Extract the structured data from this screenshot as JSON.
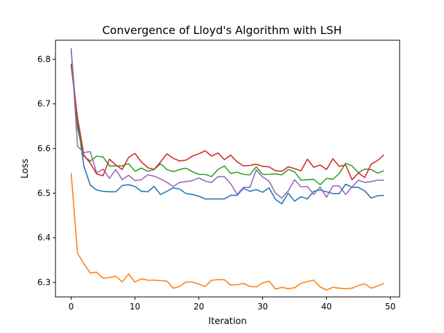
{
  "chart_data": {
    "type": "line",
    "title": "Convergence of Lloyd's Algorithm with LSH",
    "xlabel": "Iteration",
    "ylabel": "Loss",
    "xlim": [
      -2.45,
      51.45
    ],
    "ylim": [
      6.2675,
      6.8425
    ],
    "xticks": [
      0,
      10,
      20,
      30,
      40,
      50
    ],
    "yticks": [
      6.3,
      6.4,
      6.5,
      6.6,
      6.7,
      6.8
    ],
    "grid": false,
    "legend": "none",
    "x": [
      0,
      1,
      2,
      3,
      4,
      5,
      6,
      7,
      8,
      9,
      10,
      11,
      12,
      13,
      14,
      15,
      16,
      17,
      18,
      19,
      20,
      21,
      22,
      23,
      24,
      25,
      26,
      27,
      28,
      29,
      30,
      31,
      32,
      33,
      34,
      35,
      36,
      37,
      38,
      39,
      40,
      41,
      42,
      43,
      44,
      45,
      46,
      47,
      48,
      49
    ],
    "series": [
      {
        "color": "#1f77b4",
        "values": [
          6.79,
          6.66,
          6.56,
          6.518,
          6.507,
          6.504,
          6.503,
          6.503,
          6.517,
          6.519,
          6.515,
          6.504,
          6.503,
          6.515,
          6.497,
          6.504,
          6.512,
          6.509,
          6.499,
          6.497,
          6.493,
          6.487,
          6.487,
          6.487,
          6.487,
          6.495,
          6.495,
          6.511,
          6.504,
          6.508,
          6.502,
          6.512,
          6.486,
          6.476,
          6.5,
          6.482,
          6.492,
          6.487,
          6.504,
          6.507,
          6.503,
          6.499,
          6.499,
          6.52,
          6.513,
          6.513,
          6.505,
          6.489,
          6.494,
          6.495
        ]
      },
      {
        "color": "#ff7f0e",
        "values": [
          6.545,
          6.365,
          6.342,
          6.321,
          6.323,
          6.309,
          6.311,
          6.314,
          6.301,
          6.319,
          6.301,
          6.308,
          6.305,
          6.305,
          6.304,
          6.303,
          6.287,
          6.291,
          6.301,
          6.301,
          6.296,
          6.291,
          6.305,
          6.306,
          6.306,
          6.294,
          6.295,
          6.298,
          6.291,
          6.29,
          6.299,
          6.303,
          6.285,
          6.289,
          6.286,
          6.288,
          6.298,
          6.302,
          6.305,
          6.29,
          6.283,
          6.289,
          6.287,
          6.286,
          6.287,
          6.293,
          6.297,
          6.287,
          6.292,
          6.298
        ]
      },
      {
        "color": "#2ca02c",
        "values": [
          6.822,
          6.645,
          6.582,
          6.572,
          6.583,
          6.581,
          6.561,
          6.561,
          6.561,
          6.566,
          6.549,
          6.556,
          6.549,
          6.553,
          6.566,
          6.553,
          6.548,
          6.553,
          6.556,
          6.548,
          6.542,
          6.542,
          6.537,
          6.553,
          6.561,
          6.544,
          6.547,
          6.542,
          6.541,
          6.559,
          6.542,
          6.542,
          6.543,
          6.541,
          6.553,
          6.548,
          6.529,
          6.53,
          6.531,
          6.519,
          6.533,
          6.531,
          6.544,
          6.567,
          6.561,
          6.546,
          6.554,
          6.553,
          6.545,
          6.55
        ]
      },
      {
        "color": "#d62728",
        "values": [
          6.787,
          6.669,
          6.585,
          6.567,
          6.543,
          6.539,
          6.576,
          6.563,
          6.553,
          6.58,
          6.589,
          6.57,
          6.557,
          6.553,
          6.57,
          6.588,
          6.578,
          6.572,
          6.574,
          6.583,
          6.588,
          6.595,
          6.583,
          6.59,
          6.575,
          6.585,
          6.57,
          6.561,
          6.562,
          6.565,
          6.56,
          6.559,
          6.55,
          6.549,
          6.559,
          6.555,
          6.55,
          6.576,
          6.558,
          6.563,
          6.553,
          6.577,
          6.56,
          6.563,
          6.53,
          6.545,
          6.535,
          6.565,
          6.573,
          6.586
        ]
      },
      {
        "color": "#9467bd",
        "values": [
          6.825,
          6.605,
          6.591,
          6.593,
          6.545,
          6.554,
          6.533,
          6.553,
          6.53,
          6.54,
          6.528,
          6.53,
          6.541,
          6.538,
          6.532,
          6.524,
          6.515,
          6.524,
          6.526,
          6.528,
          6.534,
          6.527,
          6.524,
          6.537,
          6.537,
          6.521,
          6.497,
          6.513,
          6.513,
          6.552,
          6.536,
          6.527,
          6.5,
          6.489,
          6.505,
          6.53,
          6.514,
          6.515,
          6.497,
          6.514,
          6.491,
          6.516,
          6.516,
          6.497,
          6.514,
          6.529,
          6.524,
          6.526,
          6.529,
          6.529
        ]
      }
    ]
  }
}
